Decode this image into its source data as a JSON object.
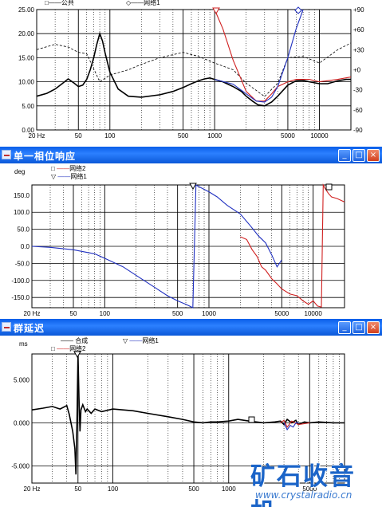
{
  "panels": {
    "magnitude": {
      "legend": [
        "公共",
        "网络1"
      ],
      "y_ticks_left": [
        "25.00",
        "20.00",
        "15.00",
        "10.00",
        "5.00",
        "0.00"
      ],
      "y_ticks_right": [
        "+90",
        "+60",
        "+30",
        "+0",
        "-30",
        "-60",
        "-90"
      ],
      "x_ticks": [
        "20 Hz",
        "50",
        "100",
        "500",
        "1000",
        "5000",
        "10000"
      ]
    },
    "phase": {
      "title": "单一相位响应",
      "y_unit": "deg",
      "legend": [
        "网络2",
        "网络1"
      ],
      "y_ticks": [
        "150.0",
        "100.0",
        "50.0",
        "0.0",
        "-50.0",
        "-100.0",
        "-150.0"
      ],
      "x_ticks": [
        "20 Hz",
        "50",
        "100",
        "500",
        "1000",
        "5000",
        "10000"
      ]
    },
    "group_delay": {
      "title": "群延迟",
      "y_unit": "ms",
      "legend": [
        "合成",
        "网络2",
        "网络1"
      ],
      "y_ticks": [
        "5.000",
        "0.000",
        "-5.000"
      ],
      "x_ticks": [
        "20 Hz",
        "50",
        "100",
        "500",
        "1000",
        "5000"
      ]
    }
  },
  "window_buttons": {
    "minimize": "_",
    "maximize": "□",
    "close": "×"
  },
  "watermark": {
    "text": "矿石收音机",
    "url": "www.crystalradio.cn"
  },
  "colors": {
    "title_bar": "#1a6ae8",
    "curve_black": "#000000",
    "curve_red": "#d02020",
    "curve_blue": "#2030c0",
    "watermark": "#1b64c8"
  },
  "chart_data": [
    {
      "type": "line",
      "title": "",
      "x_scale": "log",
      "xlim": [
        20,
        20000
      ],
      "ylim": [
        0,
        25
      ],
      "y2lim": [
        -90,
        90
      ],
      "series": [
        {
          "name": "",
          "axis": "left",
          "color": "#000000",
          "x": [
            20,
            25,
            30,
            35,
            40,
            45,
            50,
            55,
            60,
            65,
            70,
            75,
            80,
            85,
            90,
            100,
            120,
            150,
            200,
            300,
            400,
            500,
            600,
            700,
            800,
            900,
            1000,
            1200,
            1500,
            1800,
            2000,
            2300,
            2600,
            3000,
            3500,
            4000,
            5000,
            6000,
            7000,
            8000,
            10000,
            12000,
            15000,
            18000,
            20000
          ],
          "y": [
            7,
            7.6,
            8.5,
            9.6,
            10.6,
            9.8,
            9,
            9.3,
            10.5,
            12.5,
            15,
            17.8,
            20,
            18.5,
            16,
            12,
            8.5,
            7,
            6.8,
            7.3,
            8,
            8.8,
            9.6,
            10.2,
            10.6,
            10.8,
            10.5,
            10,
            9,
            8,
            7,
            6,
            5.2,
            5,
            5.8,
            7,
            9.3,
            10.2,
            10.3,
            10,
            9.6,
            9.6,
            10.2,
            10.5,
            10.5
          ]
        },
        {
          "name": "",
          "axis": "right",
          "dashed": true,
          "color": "#000000",
          "x": [
            20,
            30,
            40,
            50,
            60,
            80,
            100,
            150,
            200,
            300,
            500,
            700,
            1000,
            1500,
            2000,
            3000,
            4000,
            5000,
            7000,
            10000,
            15000,
            20000
          ],
          "y": [
            30,
            38,
            34,
            26,
            24,
            -18,
            -8,
            0,
            8,
            18,
            26,
            20,
            10,
            0,
            -20,
            -40,
            -20,
            18,
            20,
            10,
            30,
            40
          ]
        },
        {
          "name": "",
          "axis": "left",
          "color": "#d02020",
          "x": [
            1000,
            1200,
            1500,
            2000,
            2500,
            3000,
            3500,
            4000,
            5000,
            6000,
            7000,
            8000,
            10000,
            15000,
            20000
          ],
          "y": [
            25,
            21,
            14.5,
            8,
            6,
            6,
            7.5,
            9,
            10,
            10.5,
            10.5,
            10.5,
            10,
            10.5,
            11
          ]
        },
        {
          "name": "",
          "axis": "left",
          "color": "#2030c0",
          "x": [
            1000,
            1500,
            2000,
            2500,
            3000,
            3500,
            4000,
            5000,
            6000,
            7000
          ],
          "y": [
            10.5,
            9.5,
            7.5,
            6,
            5.8,
            6.8,
            9,
            15,
            21,
            25
          ]
        }
      ]
    },
    {
      "type": "line",
      "title": "",
      "y_unit": "deg",
      "x_scale": "log",
      "xlim": [
        20,
        20000
      ],
      "ylim": [
        -180,
        180
      ],
      "series": [
        {
          "name": "网络2",
          "color": "#d02020",
          "x": [
            2000,
            2300,
            2600,
            2900,
            3200,
            3500,
            4000,
            4500,
            5000,
            6000,
            7000,
            8000,
            9000,
            10000,
            11000,
            12000,
            12500,
            13000,
            14000,
            15000,
            17000,
            20000
          ],
          "y": [
            28,
            20,
            -10,
            -30,
            -60,
            -70,
            -95,
            -110,
            -125,
            -140,
            -145,
            -160,
            -170,
            -160,
            -175,
            -178,
            180,
            170,
            155,
            145,
            140,
            130
          ]
        },
        {
          "name": "网络1",
          "color": "#2030c0",
          "x": [
            20,
            30,
            50,
            80,
            100,
            150,
            200,
            300,
            400,
            500,
            600,
            650,
            700,
            750,
            800,
            1000,
            1200,
            1500,
            2000,
            2500,
            3000,
            3500,
            4000,
            4500,
            5000
          ],
          "y": [
            0,
            -3,
            -10,
            -22,
            -35,
            -60,
            -85,
            -120,
            -145,
            -160,
            -170,
            -175,
            -180,
            180,
            175,
            160,
            145,
            120,
            95,
            60,
            30,
            10,
            -25,
            -60,
            -40
          ]
        }
      ]
    },
    {
      "type": "line",
      "title": "",
      "y_unit": "ms",
      "x_scale": "log",
      "xlim": [
        20,
        10000
      ],
      "ylim": [
        -7,
        8
      ],
      "series": [
        {
          "name": "合成",
          "color": "#000000",
          "x": [
            20,
            25,
            30,
            35,
            40,
            42,
            45,
            47,
            48,
            49,
            50,
            51,
            52,
            53,
            55,
            58,
            60,
            65,
            70,
            80,
            100,
            150,
            200,
            300,
            400,
            500,
            600,
            700,
            800,
            1000,
            1200,
            1500,
            2000,
            2500,
            2800,
            3000,
            3200,
            3500,
            3800,
            4000,
            4500,
            5000,
            6000,
            8000,
            10000
          ],
          "y": [
            1.5,
            1.7,
            1.9,
            1.6,
            2,
            1,
            -1,
            -3,
            -6,
            0,
            8,
            3,
            -1,
            1.5,
            2.1,
            1.3,
            1.6,
            1.1,
            1.6,
            1.3,
            1.6,
            1.4,
            1.1,
            0.7,
            0.4,
            0.1,
            0,
            0.1,
            0.1,
            0.2,
            0.4,
            0.2,
            0,
            0.1,
            0.2,
            -0.2,
            0.4,
            0,
            0.3,
            -0.2,
            0.1,
            0,
            0.1,
            0,
            0
          ]
        },
        {
          "name": "网络2",
          "color": "#d02020",
          "x": [
            2800,
            3000,
            3200,
            3500,
            4000,
            5000
          ],
          "y": [
            0,
            0.3,
            -0.5,
            0.2,
            -0.2,
            0
          ]
        },
        {
          "name": "网络1",
          "color": "#2030c0",
          "x": [
            3000,
            3200,
            3400,
            3600,
            3800,
            4000
          ],
          "y": [
            0,
            -0.8,
            -0.3,
            -0.5,
            0,
            0
          ]
        }
      ]
    }
  ]
}
